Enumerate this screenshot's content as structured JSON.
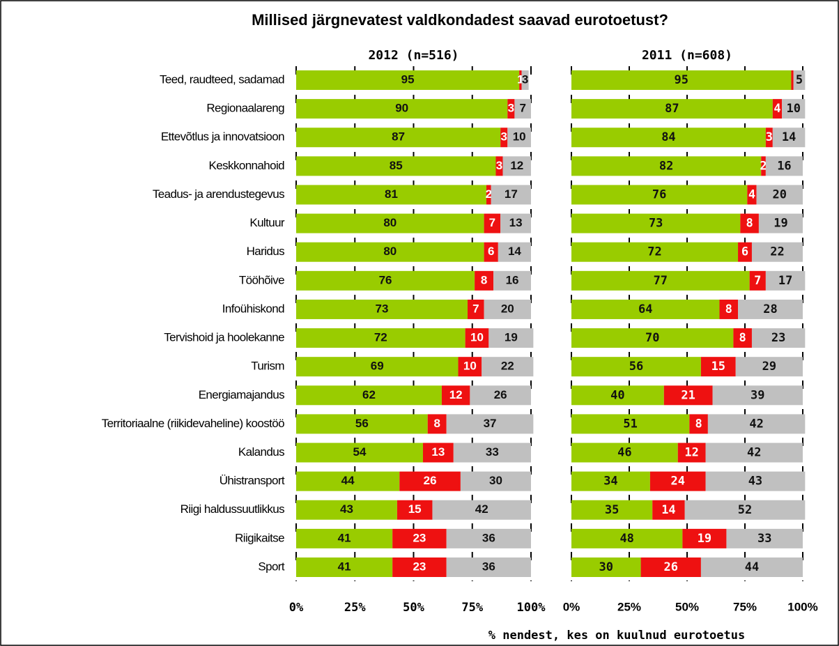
{
  "title": "Millised järgnevatest valdkondadest saavad eurotoetust?",
  "xlabel": "% nendest, kes on kuulnud eurotoetus",
  "categories": [
    "Teed, raudteed, sadamad",
    "Regionaalareng",
    "Ettevõtlus ja innovatsioon",
    "Keskkonnahoid",
    "Teadus- ja arendustegevus",
    "Kultuur",
    "Haridus",
    "Tööhõive",
    "Infoühiskond",
    "Tervishoid ja hoolekanne",
    "Turism",
    "Energiamajandus",
    "Territoriaalne (riikidevaheline) koostöö",
    "Kalandus",
    "Ühistransport",
    "Riigi haldussuutlikkus",
    "Riigikaitse",
    "Sport"
  ],
  "chart_data": [
    {
      "type": "stacked_barh",
      "subtitle": "2012 (n=516)",
      "xlim": [
        0,
        100
      ],
      "xticks": [
        {
          "value": 0,
          "label": "0%"
        },
        {
          "value": 25,
          "label": "25%"
        },
        {
          "value": 50,
          "label": "50%"
        },
        {
          "value": 75,
          "label": "75%"
        },
        {
          "value": 100,
          "label": "100%"
        }
      ],
      "grid": true,
      "series": [
        {
          "color": "#99cc00",
          "values": [
            95,
            90,
            87,
            85,
            81,
            80,
            80,
            76,
            73,
            72,
            69,
            62,
            56,
            54,
            44,
            43,
            41,
            41
          ]
        },
        {
          "color": "#ee1111",
          "values": [
            1,
            3,
            3,
            3,
            2,
            7,
            6,
            8,
            7,
            10,
            10,
            12,
            8,
            13,
            26,
            15,
            23,
            23
          ]
        },
        {
          "color": "#c0c0c0",
          "values": [
            3,
            7,
            10,
            12,
            17,
            13,
            14,
            16,
            20,
            19,
            22,
            26,
            37,
            33,
            30,
            42,
            36,
            36
          ]
        }
      ]
    },
    {
      "type": "stacked_barh",
      "subtitle": "2011 (n=608)",
      "xlim": [
        0,
        100
      ],
      "xticks": [
        {
          "value": 0,
          "label": "0%"
        },
        {
          "value": 25,
          "label": "25%"
        },
        {
          "value": 50,
          "label": "50%"
        },
        {
          "value": 75,
          "label": "75%"
        },
        {
          "value": 100,
          "label": "100%"
        }
      ],
      "grid": true,
      "series": [
        {
          "color": "#99cc00",
          "values": [
            95,
            87,
            84,
            82,
            76,
            73,
            72,
            77,
            64,
            70,
            56,
            40,
            51,
            46,
            34,
            35,
            48,
            30
          ]
        },
        {
          "color": "#ee1111",
          "values": [
            1,
            4,
            3,
            2,
            4,
            8,
            6,
            7,
            8,
            8,
            15,
            21,
            8,
            12,
            24,
            14,
            19,
            26
          ],
          "value_labels": [
            null,
            "4",
            "3",
            "2",
            "4",
            "8",
            "6",
            "7",
            "8",
            "8",
            "15",
            "21",
            "8",
            "12",
            "24",
            "14",
            "19",
            "26"
          ]
        },
        {
          "color": "#c0c0c0",
          "values": [
            5,
            10,
            14,
            16,
            20,
            19,
            22,
            17,
            28,
            23,
            29,
            39,
            42,
            42,
            43,
            52,
            33,
            44
          ]
        }
      ]
    }
  ]
}
